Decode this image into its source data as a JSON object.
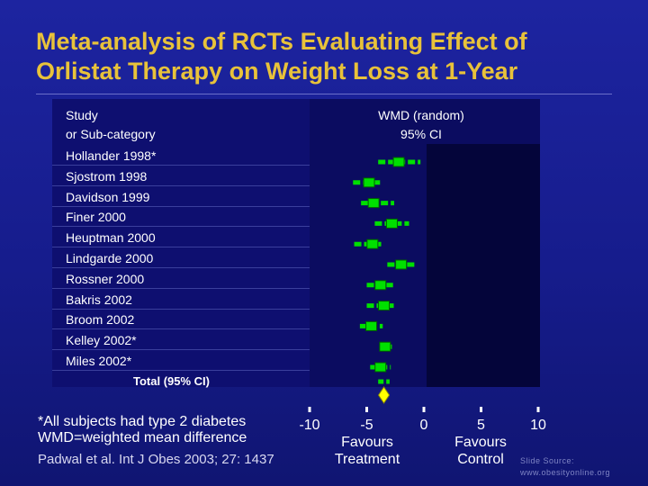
{
  "slide": {
    "title_line1": "Meta-analysis of RCTs Evaluating Effect of",
    "title_line2": "Orlistat Therapy on Weight Loss at 1-Year"
  },
  "header": {
    "study_line1": "Study",
    "study_line2": "or Sub-category",
    "wmd_line1": "WMD (random)",
    "wmd_line2": "95% CI"
  },
  "footnotes": {
    "line1": "*All subjects had type 2 diabetes",
    "line2": "WMD=weighted mean difference",
    "citation": "Padwal et al. Int J Obes 2003; 27: 1437"
  },
  "favours": {
    "left_line1": "Favours",
    "left_line2": "Treatment",
    "right_line1": "Favours",
    "right_line2": "Control"
  },
  "source": {
    "line1": "Slide Source:",
    "line2": "www.obesityonline.org"
  },
  "colors": {
    "title": "#e8c23a",
    "marker": "#00e000",
    "diamond": "#ffff00"
  },
  "chart_data": {
    "type": "forest",
    "xlabel": "",
    "ylabel": "",
    "xlim": [
      -10,
      10
    ],
    "ticks": [
      "-10",
      "-5",
      "0",
      "5",
      "10"
    ],
    "tick_values": [
      -10,
      -5,
      0,
      5,
      10
    ],
    "studies": [
      {
        "name": "Hollander 1998*",
        "wmd": -2.2,
        "ci": [
          -4.0,
          -0.3
        ]
      },
      {
        "name": "Sjostrom 1998",
        "wmd": -4.8,
        "ci": [
          -6.2,
          -3.8
        ]
      },
      {
        "name": "Davidson 1999",
        "wmd": -4.4,
        "ci": [
          -5.5,
          -2.6
        ]
      },
      {
        "name": "Finer 2000",
        "wmd": -2.8,
        "ci": [
          -4.3,
          -1.3
        ]
      },
      {
        "name": "Heuptman 2000",
        "wmd": -4.5,
        "ci": [
          -6.1,
          -3.5
        ]
      },
      {
        "name": "Lindgarde 2000",
        "wmd": -2.0,
        "ci": [
          -3.2,
          -0.8
        ]
      },
      {
        "name": "Rossner 2000",
        "wmd": -3.8,
        "ci": [
          -5.0,
          -2.7
        ]
      },
      {
        "name": "Bakris 2002",
        "wmd": -3.5,
        "ci": [
          -5.0,
          -2.5
        ]
      },
      {
        "name": "Broom 2002",
        "wmd": -4.6,
        "ci": [
          -5.6,
          -3.6
        ]
      },
      {
        "name": "Kelley 2002*",
        "wmd": -3.4,
        "ci": [
          -3.9,
          -2.8
        ]
      },
      {
        "name": "Miles 2002*",
        "wmd": -3.8,
        "ci": [
          -4.7,
          -2.9
        ]
      }
    ],
    "total": {
      "name": "Total (95% CI)",
      "wmd": -3.5,
      "ci": [
        -4.0,
        -3.0
      ]
    }
  }
}
